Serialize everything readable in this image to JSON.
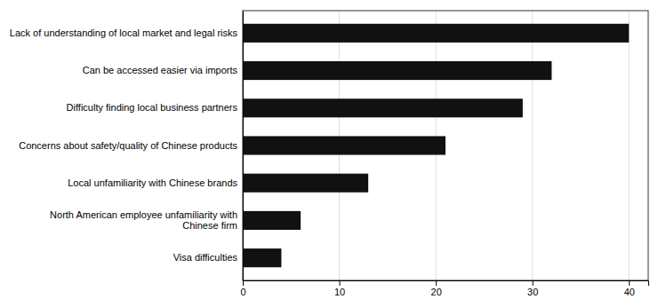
{
  "chart_data": {
    "type": "bar",
    "orientation": "horizontal",
    "categories": [
      "Lack of understanding of local market and legal risks",
      "Can be accessed easier via imports",
      "Difficulty finding local business partners",
      "Concerns about safety/quality of Chinese products",
      "Local unfamiliarity with Chinese brands",
      "North American employee unfamiliarity with\nChinese firm",
      "Visa difficulties"
    ],
    "values": [
      40,
      32,
      29,
      21,
      13,
      6,
      4
    ],
    "color": "#111111",
    "xlim": [
      0,
      42
    ],
    "xticks": [
      0,
      10,
      20,
      30,
      40
    ],
    "grid": true
  }
}
